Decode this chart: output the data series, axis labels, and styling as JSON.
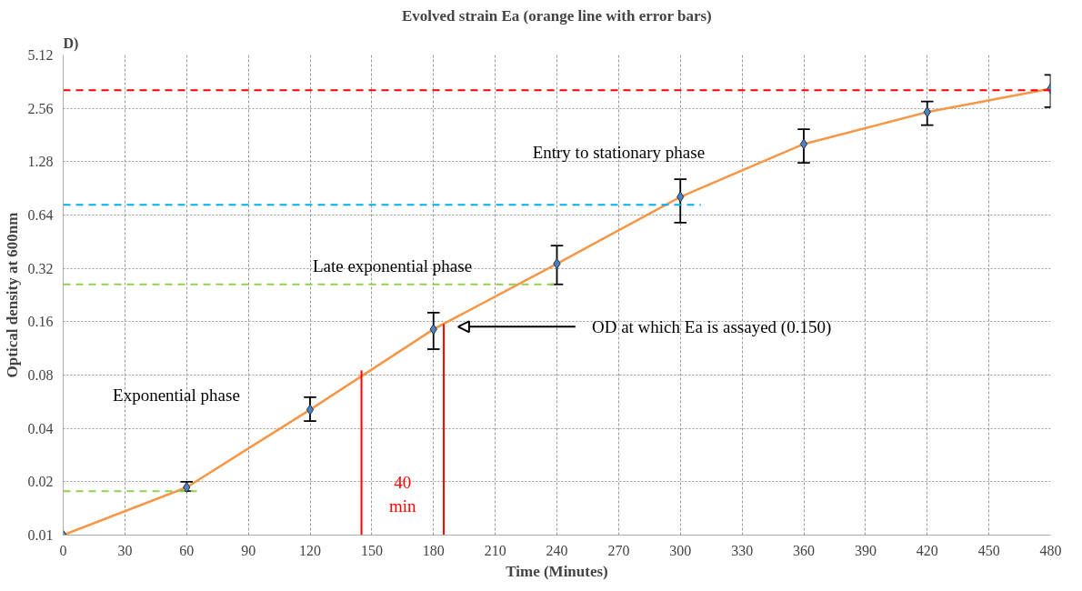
{
  "chart_data": {
    "type": "line",
    "title": "Evolved strain Ea (orange line with error bars)",
    "xlabel": "Time (Minutes)",
    "ylabel": "Optical density at 600nm",
    "x": [
      0,
      60,
      120,
      180,
      240,
      300,
      360,
      420,
      480
    ],
    "series": [
      {
        "color": "#f79646",
        "values": [
          0.01,
          0.0186,
          0.051,
          0.145,
          0.34,
          0.81,
          1.61,
          2.44,
          3.31
        ],
        "errors": [
          null,
          [
            0.0177,
            0.02
          ],
          [
            0.044,
            0.06
          ],
          [
            0.112,
            0.18
          ],
          [
            0.26,
            0.43
          ],
          [
            0.58,
            1.02
          ],
          [
            1.26,
            1.95
          ],
          [
            2.06,
            2.8
          ],
          [
            2.6,
            3.95
          ]
        ],
        "marker": "diamond",
        "line_style": "solid"
      },
      {
        "type": "line",
        "color": "#ff0000",
        "x": [
          0,
          480
        ],
        "values": [
          3.24,
          3.24
        ],
        "marker": "none",
        "line_style": "dashed"
      },
      {
        "type": "line",
        "color": "#00b0f0",
        "x": [
          0,
          310
        ],
        "values": [
          0.73,
          0.73
        ],
        "marker": "none",
        "line_style": "dashed"
      },
      {
        "type": "line",
        "color": "#92d050",
        "x": [
          0,
          240
        ],
        "values": [
          0.26,
          0.26
        ],
        "marker": "none",
        "line_style": "dashed"
      },
      {
        "type": "line",
        "color": "#92d050",
        "x": [
          0,
          65
        ],
        "values": [
          0.0177,
          0.0177
        ],
        "marker": "none",
        "line_style": "dashed"
      },
      {
        "type": "line",
        "color": "#ff0000",
        "x": [
          145,
          145
        ],
        "values": [
          0.01,
          0.085
        ],
        "marker": "none",
        "line_style": "solid"
      },
      {
        "type": "line",
        "color": "#ff0000",
        "x": [
          185,
          185
        ],
        "values": [
          0.01,
          0.155
        ],
        "marker": "none",
        "line_style": "solid"
      }
    ],
    "annotations": [
      "D)",
      "Entry to stationary phase",
      "Late exponential phase",
      "Exponential phase",
      "40\nmin",
      "OD at which Ea is assayed (0.150)"
    ],
    "xlim": [
      0,
      480
    ],
    "xticks": [
      0,
      30,
      60,
      90,
      120,
      150,
      180,
      210,
      240,
      270,
      300,
      330,
      360,
      390,
      420,
      450,
      480
    ],
    "ylim": [
      0.01,
      5.12
    ],
    "yticks": [
      0.01,
      0.02,
      0.04,
      0.08,
      0.16,
      0.32,
      0.64,
      1.28,
      2.56,
      5.12
    ],
    "log": "y",
    "grid": true
  }
}
